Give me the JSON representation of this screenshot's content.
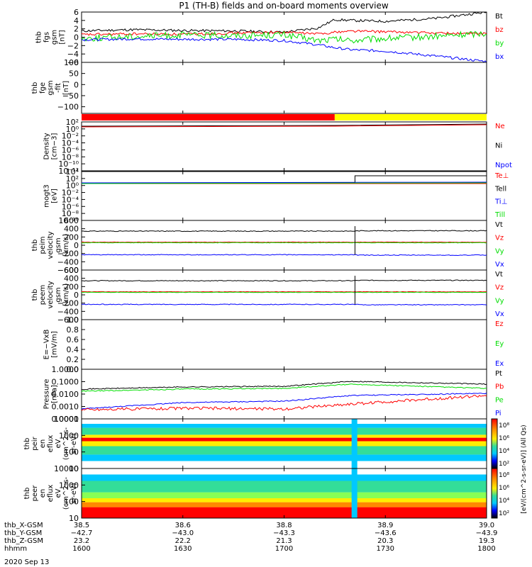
{
  "figure": {
    "title": "P1 (TH-B) fields and on-board moments overview",
    "date": "2020 Sep 13"
  },
  "time_axis": {
    "ticks": [
      "1600",
      "1630",
      "1700",
      "1730",
      "1800"
    ],
    "rows": [
      {
        "label": "thb_X-GSM",
        "values": [
          "38.5",
          "38.6",
          "38.8",
          "38.9",
          "39.0"
        ]
      },
      {
        "label": "thb_Y-GSM",
        "values": [
          "−42.7",
          "−43.0",
          "−43.3",
          "−43.6",
          "−43.9"
        ]
      },
      {
        "label": "thb_Z-GSM",
        "values": [
          "23.2",
          "22.2",
          "21.3",
          "20.3",
          "19.3"
        ]
      },
      {
        "label": "hhmm",
        "values": [
          "1600",
          "1630",
          "1700",
          "1730",
          "1800"
        ]
      }
    ]
  },
  "colors": {
    "black": "#000000",
    "red": "#ff0000",
    "green": "#00dd00",
    "blue": "#0000ff",
    "yellow": "#ffff00"
  },
  "chart_data": [
    {
      "type": "line",
      "ylabel": [
        "thb",
        "fgs",
        "gsm",
        "[nT]"
      ],
      "ylim": [
        -6,
        6
      ],
      "yticks": [
        "6",
        "4",
        "2",
        "0",
        "−2",
        "−4",
        "−6"
      ],
      "legend": [
        "Bt",
        "bz",
        "by",
        "bx"
      ],
      "x_hhmm": [
        "1600",
        "1615",
        "1630",
        "1645",
        "1700",
        "1710",
        "1715",
        "1720",
        "1730",
        "1745",
        "1800"
      ],
      "series": [
        {
          "name": "Bt",
          "color": "#000000",
          "values": [
            1.5,
            1.8,
            1.6,
            1.5,
            1.2,
            2.2,
            4.2,
            4.0,
            3.8,
            4.5,
            6.0
          ]
        },
        {
          "name": "bz",
          "color": "#ff0000",
          "values": [
            0.6,
            0.8,
            0.7,
            1.0,
            1.2,
            0.8,
            1.2,
            1.5,
            1.3,
            1.0,
            0.8
          ]
        },
        {
          "name": "by",
          "color": "#00dd00",
          "values": [
            -0.3,
            0.2,
            0.5,
            0.4,
            0.6,
            -0.8,
            -0.5,
            -0.8,
            -0.3,
            0.2,
            1.0
          ]
        },
        {
          "name": "bx",
          "color": "#0000ff",
          "values": [
            -0.6,
            -0.4,
            -0.5,
            -0.5,
            -0.8,
            -1.8,
            -2.5,
            -3.0,
            -3.3,
            -4.5,
            -5.8
          ]
        }
      ]
    },
    {
      "type": "line",
      "ylabel": [
        "thb",
        "fge",
        "gsm",
        "-fit",
        "[nT]"
      ],
      "ylim": [
        -130,
        100
      ],
      "yticks": [
        "100",
        "50",
        "0",
        "−50",
        "−100"
      ],
      "series": []
    },
    {
      "type": "bar",
      "note": "mode bar",
      "segments": [
        {
          "from": "1600",
          "to": "1715",
          "color": "#ff0000"
        },
        {
          "from": "1715",
          "to": "1800",
          "color": "#ffff00"
        }
      ]
    },
    {
      "type": "line",
      "scale": "log",
      "ylabel": [
        "Density",
        "[cm−3]"
      ],
      "yticks": [
        "10²",
        "10⁰",
        "10⁻²",
        "10⁻⁴",
        "10⁻⁶",
        "10⁻⁸",
        "10⁻¹⁰",
        "10⁻¹²"
      ],
      "legend": [
        "Ne",
        "Ni",
        "Npot"
      ],
      "legend_colors": [
        "#ff0000",
        "#000000",
        "#0000ff"
      ]
    },
    {
      "type": "line",
      "scale": "log",
      "ylabel": [
        "mogt3",
        "[eV]"
      ],
      "yticks": [
        "10⁴",
        "10²",
        "10⁰",
        "10⁻²",
        "10⁻⁴",
        "10⁻⁶",
        "10⁻⁸",
        "10⁻¹⁰"
      ],
      "legend": [
        "Te⊥",
        "Tell",
        "Ti⊥",
        "Till"
      ],
      "legend_colors": [
        "#ff0000",
        "#000000",
        "#0000ff",
        "#00dd00"
      ]
    },
    {
      "type": "line",
      "ylabel": [
        "thb",
        "peim",
        "velocity",
        "gsm",
        "[km/s]"
      ],
      "ylim": [
        -700,
        600
      ],
      "yticks": [
        "600",
        "400",
        "200",
        "0",
        "−200",
        "−400",
        "−600"
      ],
      "legend": [
        "Vt",
        "Vz",
        "Vy",
        "Vx"
      ],
      "legend_colors": [
        "#000000",
        "#ff0000",
        "#00dd00",
        "#0000ff"
      ]
    },
    {
      "type": "line",
      "ylabel": [
        "thb",
        "peem",
        "velocity",
        "gsm",
        "[km/s]"
      ],
      "ylim": [
        -700,
        600
      ],
      "yticks": [
        "600",
        "400",
        "200",
        "0",
        "−200",
        "−400",
        "−600"
      ],
      "legend": [
        "Vt",
        "Vz",
        "Vy",
        "Vx"
      ],
      "legend_colors": [
        "#000000",
        "#ff0000",
        "#00dd00",
        "#0000ff"
      ]
    },
    {
      "type": "line",
      "ylabel": [
        "E=−VxB",
        "[mV/m]"
      ],
      "ylim": [
        0,
        1
      ],
      "yticks": [
        "1.0",
        "0.8",
        "0.6",
        "0.4",
        "0.2",
        "0.0"
      ],
      "legend": [
        "Ez",
        "Ey",
        "Ex"
      ],
      "legend_colors": [
        "#ff0000",
        "#00dd00",
        "#0000ff"
      ]
    },
    {
      "type": "line",
      "scale": "log",
      "ylabel": [
        "Pressure",
        "[nPa]"
      ],
      "yticks": [
        "1.0000",
        "0.1000",
        "0.0100",
        "0.0010",
        "0.0001"
      ],
      "legend": [
        "Pt",
        "Pb",
        "Pe",
        "Pi"
      ],
      "legend_colors": [
        "#000000",
        "#ff0000",
        "#00dd00",
        "#0000ff"
      ]
    },
    {
      "type": "heatmap",
      "ylabel": [
        "thb",
        "peir",
        "en",
        "eflux",
        "eV",
        "(cm^2-s-",
        "sr-eV)"
      ],
      "yticks": [
        "10000",
        "1000",
        "100",
        "10"
      ]
    },
    {
      "type": "heatmap",
      "ylabel": [
        "thb",
        "peer",
        "en",
        "eflux",
        "eV",
        "(cm^2-s-",
        "sr-eV)"
      ],
      "yticks": [
        "10000",
        "1000",
        "100",
        "10"
      ]
    }
  ],
  "colorbar": {
    "labels": [
      "10⁸",
      "10⁶",
      "10⁴",
      "10²"
    ],
    "labels_lower": [
      "10⁸",
      "10⁶",
      "10⁴",
      "10²"
    ],
    "title": "[eV/(cm^2-s-sr-eV)] (All Qs)"
  }
}
